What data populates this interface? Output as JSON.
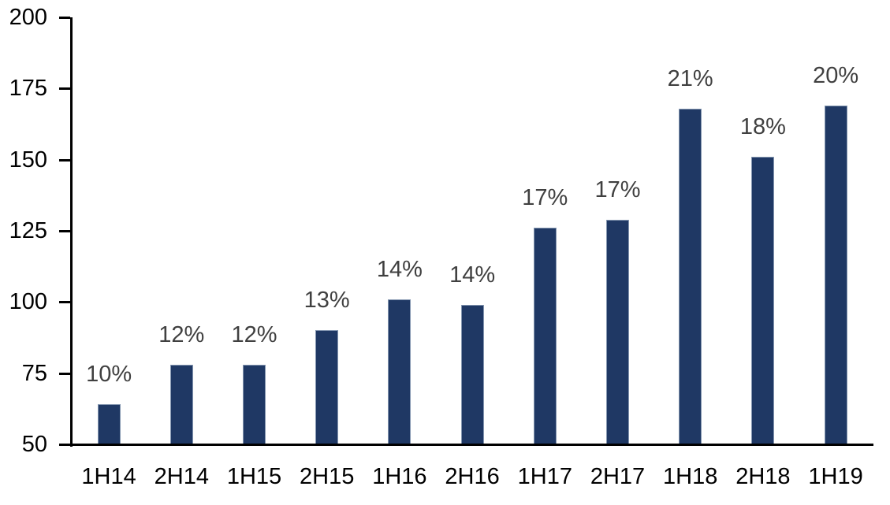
{
  "chart_data": {
    "type": "bar",
    "title": "",
    "xlabel": "",
    "ylabel": "",
    "categories": [
      "1H14",
      "2H14",
      "1H15",
      "2H15",
      "1H16",
      "2H16",
      "1H17",
      "2H17",
      "1H18",
      "2H18",
      "1H19"
    ],
    "values": [
      64,
      78,
      78,
      90,
      101,
      99,
      126,
      129,
      168,
      151,
      169
    ],
    "bar_labels": [
      "10%",
      "12%",
      "12%",
      "13%",
      "14%",
      "14%",
      "17%",
      "17%",
      "21%",
      "18%",
      "20%"
    ],
    "ylim": [
      50,
      200
    ],
    "yticks": [
      50,
      75,
      100,
      125,
      150,
      175,
      200
    ],
    "grid": false,
    "legend": null,
    "colors": {
      "bar_fill": "#1f3864",
      "bar_border": "#8496b0",
      "bar_label_text": "#404040",
      "axis_text": "#000000",
      "axis_line": "#000000",
      "background": "#ffffff"
    }
  }
}
